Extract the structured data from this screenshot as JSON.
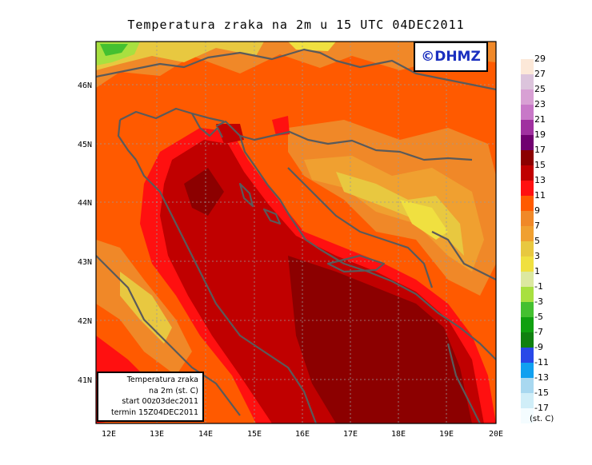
{
  "title": "Temperatura zraka na 2m u 15 UTC 04DEC2011",
  "logo": "©DHMZ",
  "info_box": {
    "line1": "Temperatura zraka",
    "line2": "na 2m (st. C)",
    "line3": "start 00z03dec2011",
    "line4": "termin 15Z04DEC2011"
  },
  "axes": {
    "x_ticks": [
      "12E",
      "13E",
      "14E",
      "15E",
      "16E",
      "17E",
      "18E",
      "19E",
      "20E"
    ],
    "y_ticks": [
      "46N",
      "45N",
      "44N",
      "43N",
      "42N",
      "41N"
    ]
  },
  "legend": {
    "unit": "(st. C)",
    "labels": [
      "29",
      "27",
      "25",
      "23",
      "21",
      "19",
      "17",
      "15",
      "13",
      "11",
      "9",
      "7",
      "5",
      "3",
      "1",
      "-1",
      "-3",
      "-5",
      "-7",
      "-9",
      "-11",
      "-13",
      "-15",
      "-17"
    ],
    "colors": [
      "#fce8d8",
      "#dcc4dc",
      "#d8a0d4",
      "#c878c8",
      "#a030a0",
      "#700070",
      "#8c0000",
      "#c00000",
      "#ff1010",
      "#ff5a00",
      "#f08828",
      "#f0a030",
      "#e8c840",
      "#f0e040",
      "#dce8a0",
      "#a8e040",
      "#44c030",
      "#10a010",
      "#108010",
      "#2848e8",
      "#10a0f0",
      "#a8d8f0",
      "#d0eef8",
      "#f4fcff"
    ]
  },
  "colors": {
    "coast": "#5a5a5a",
    "grid": "#9a9a9a"
  }
}
